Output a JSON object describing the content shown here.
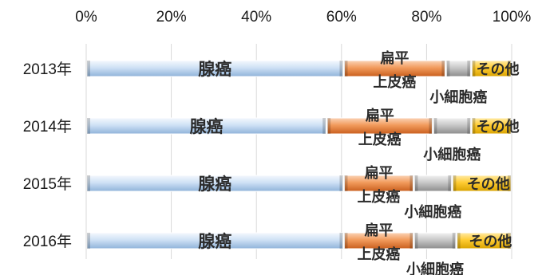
{
  "chart_data": {
    "type": "bar",
    "orientation": "horizontal",
    "stacked": "percent",
    "x_ticks": [
      "0%",
      "20%",
      "40%",
      "60%",
      "80%",
      "100%"
    ],
    "xlim": [
      0,
      100
    ],
    "x_axis_position": "top",
    "categories": [
      "2013年",
      "2014年",
      "2015年",
      "2016年"
    ],
    "series": [
      {
        "name": "腺癌",
        "values": [
          60.5,
          56.5,
          60.5,
          60.5
        ],
        "color": "#9cc3e6"
      },
      {
        "name": "扁平上皮癌",
        "values": [
          24,
          25,
          16.5,
          16.5
        ],
        "color": "#ed7d31"
      },
      {
        "name": "小細胞癌",
        "values": [
          6,
          9,
          9,
          10
        ],
        "color": "#a6a6a6"
      },
      {
        "name": "その他",
        "values": [
          9.5,
          9.5,
          14,
          13
        ],
        "color": "#ffc000"
      }
    ],
    "grid": "vertical",
    "legend": "none"
  }
}
